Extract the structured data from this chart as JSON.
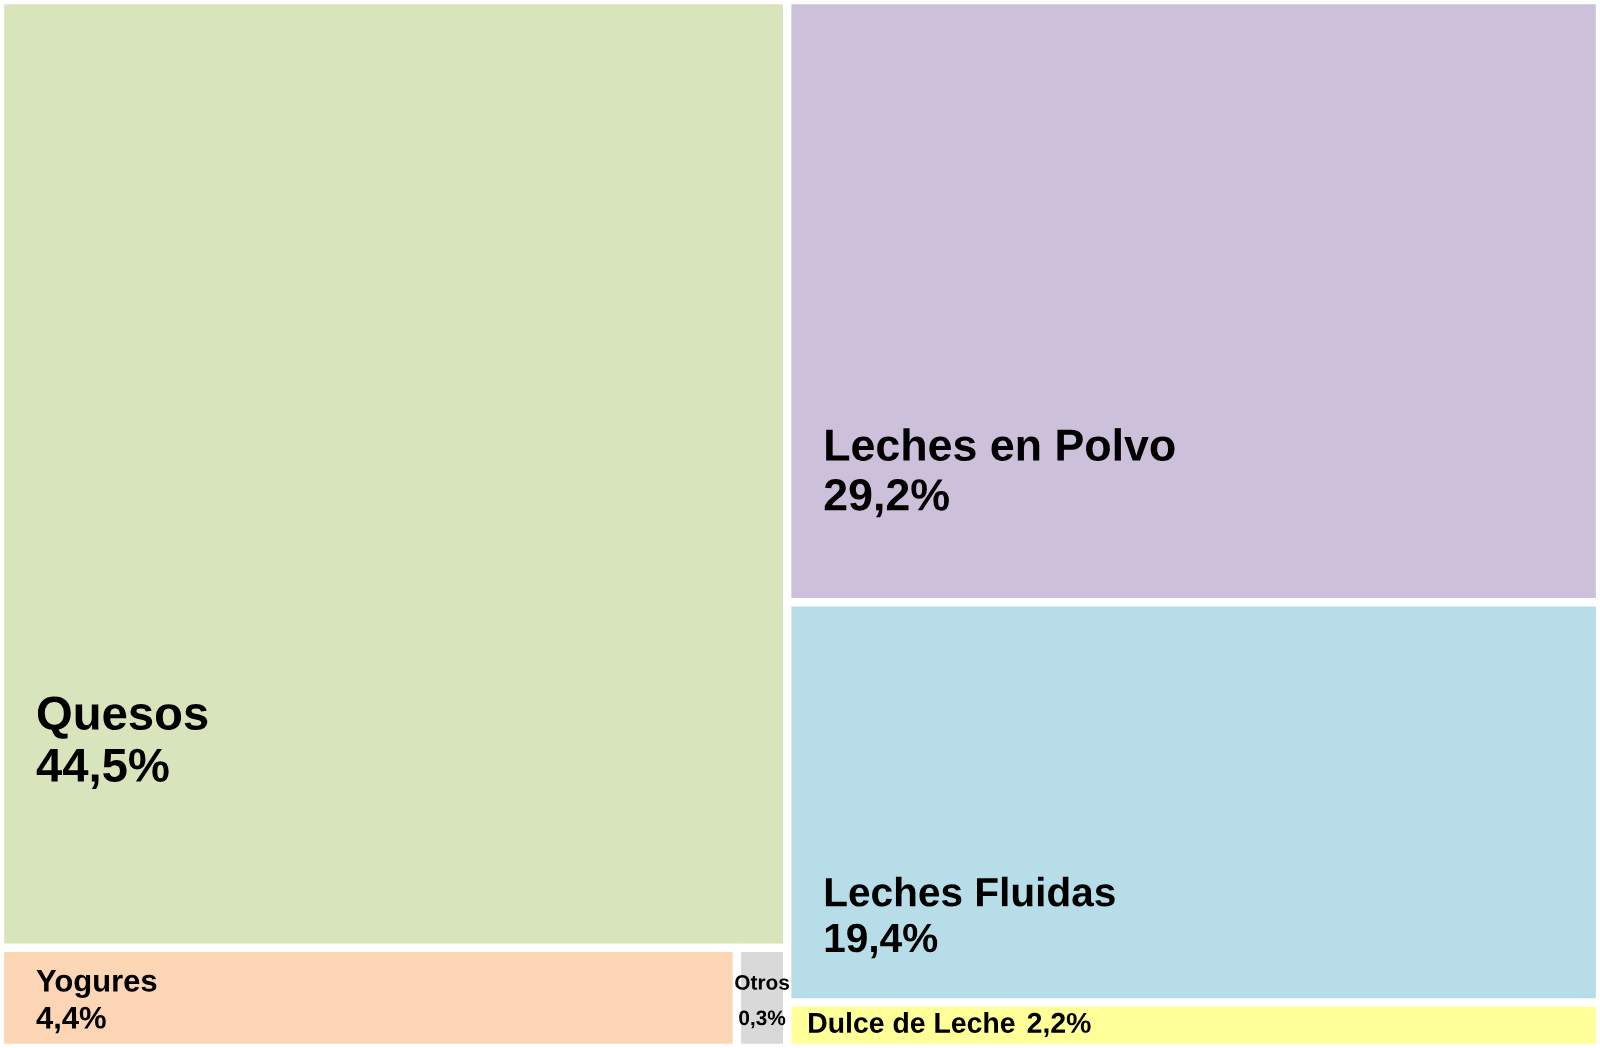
{
  "chart_data": {
    "type": "other",
    "categories": [
      "Quesos",
      "Yogures",
      "Otros",
      "Leches en Polvo",
      "Leches Fluidas",
      "Dulce de Leche"
    ],
    "values": [
      44.5,
      4.4,
      0.3,
      29.2,
      19.4,
      2.2
    ],
    "value_labels": [
      "44,5%",
      "4,4%",
      "0,3%",
      "29,2%",
      "19,4%",
      "2,2%"
    ],
    "colors": [
      "#d8e4bc",
      "#fcd5b4",
      "#d9d9d9",
      "#ccc0da",
      "#b7dee8",
      "#ffff99"
    ]
  }
}
